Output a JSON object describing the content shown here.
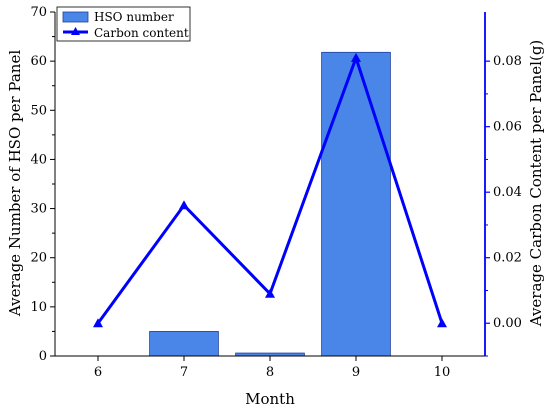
{
  "chart_data": {
    "type": "bar+line",
    "categories": [
      "6",
      "7",
      "8",
      "9",
      "10"
    ],
    "xlabel": "Month",
    "ylabel_left": "Average Number of HSO per Panel",
    "ylabel_right": "Average Carbon Content per Panel(g)",
    "ylim_left": [
      0,
      70
    ],
    "yticks_left": [
      "0",
      "10",
      "20",
      "30",
      "40",
      "50",
      "60",
      "70"
    ],
    "ylim_right": [
      -0.01,
      0.095
    ],
    "yticks_right": [
      "0.00",
      "0.02",
      "0.04",
      "0.06",
      "0.08"
    ],
    "grid": false,
    "legend_position": "top-left",
    "series": [
      {
        "name": "HSO number",
        "type": "bar",
        "axis": "left",
        "color": "#4a86e8",
        "values": [
          0,
          5,
          0.6,
          61.8,
          0
        ]
      },
      {
        "name": "Carbon content",
        "type": "line",
        "axis": "right",
        "color": "#0000ff",
        "marker": "triangle",
        "values": [
          0.0,
          0.036,
          0.009,
          0.081,
          0.0
        ]
      }
    ]
  }
}
